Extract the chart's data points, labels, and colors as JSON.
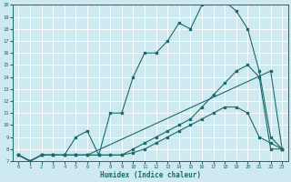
{
  "xlabel": "Humidex (Indice chaleur)",
  "bg_color": "#cfe9f0",
  "line_color": "#1a6b6b",
  "grid_color": "#ffffff",
  "xlim": [
    -0.5,
    23.5
  ],
  "ylim": [
    7,
    20
  ],
  "xticks": [
    0,
    1,
    2,
    3,
    4,
    5,
    6,
    7,
    8,
    9,
    10,
    11,
    12,
    13,
    14,
    15,
    16,
    17,
    18,
    19,
    20,
    21,
    22,
    23
  ],
  "yticks": [
    7,
    8,
    9,
    10,
    11,
    12,
    13,
    14,
    15,
    16,
    17,
    18,
    19,
    20
  ],
  "line1_x": [
    0,
    1,
    2,
    3,
    4,
    5,
    6,
    7,
    8,
    9,
    10,
    11,
    12,
    13,
    14,
    15,
    16,
    17,
    18,
    19,
    20,
    21,
    22,
    23
  ],
  "line1_y": [
    7.5,
    7.0,
    7.5,
    7.5,
    7.5,
    9.0,
    9.5,
    7.5,
    11.0,
    11.0,
    14.0,
    16.0,
    16.0,
    17.0,
    18.5,
    18.0,
    20.0,
    20.3,
    20.3,
    19.5,
    18.0,
    14.5,
    9.0,
    8.0
  ],
  "line2_x": [
    0,
    1,
    2,
    3,
    4,
    5,
    6,
    22,
    23
  ],
  "line2_y": [
    7.5,
    7.0,
    7.5,
    7.5,
    7.5,
    7.5,
    7.5,
    14.5,
    8.0
  ],
  "line3_x": [
    0,
    1,
    2,
    3,
    4,
    5,
    6,
    7,
    8,
    9,
    10,
    11,
    12,
    13,
    14,
    15,
    16,
    17,
    18,
    19,
    20,
    21,
    22,
    23
  ],
  "line3_y": [
    7.5,
    7.0,
    7.5,
    7.5,
    7.5,
    7.5,
    7.5,
    7.5,
    7.5,
    7.5,
    7.7,
    8.0,
    8.5,
    9.0,
    9.5,
    10.0,
    10.5,
    11.0,
    11.5,
    11.5,
    11.0,
    9.0,
    8.5,
    8.0
  ],
  "line4_x": [
    0,
    1,
    2,
    3,
    4,
    5,
    6,
    7,
    8,
    9,
    10,
    11,
    12,
    13,
    14,
    15,
    16,
    17,
    18,
    19,
    20,
    21,
    22,
    23
  ],
  "line4_y": [
    7.5,
    7.0,
    7.5,
    7.5,
    7.5,
    7.5,
    7.5,
    7.5,
    7.5,
    7.5,
    8.0,
    8.5,
    9.0,
    9.5,
    10.0,
    10.5,
    11.5,
    12.5,
    13.5,
    14.5,
    15.0,
    14.0,
    8.0,
    8.0
  ]
}
